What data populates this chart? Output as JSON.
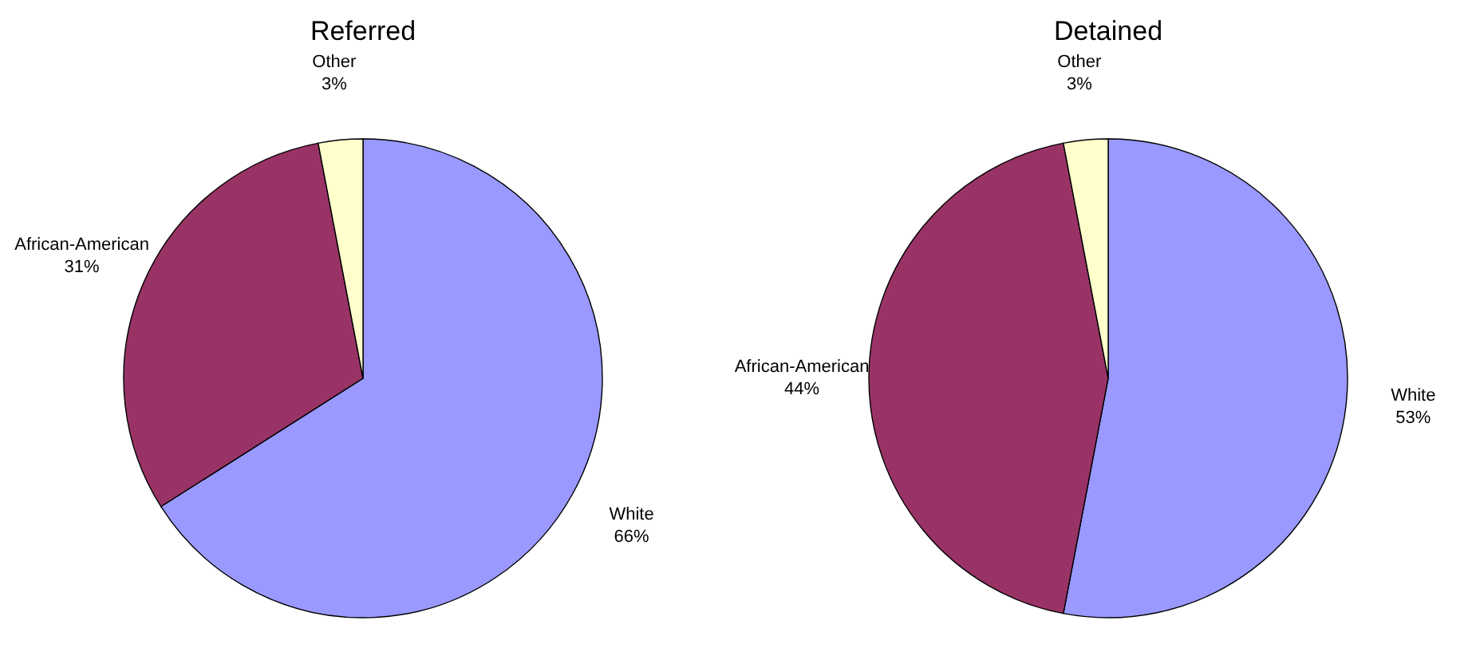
{
  "chart_data": [
    {
      "type": "pie",
      "title": "Referred",
      "categories": [
        "White",
        "African-American",
        "Other"
      ],
      "values": [
        66,
        31,
        3
      ],
      "value_labels": [
        "66%",
        "31%",
        "3%"
      ],
      "colors": [
        "#9999ff",
        "#993366",
        "#ffffcc"
      ]
    },
    {
      "type": "pie",
      "title": "Detained",
      "categories": [
        "White",
        "African-American",
        "Other"
      ],
      "values": [
        53,
        44,
        3
      ],
      "value_labels": [
        "53%",
        "44%",
        "3%"
      ],
      "colors": [
        "#9999ff",
        "#993366",
        "#ffffcc"
      ]
    }
  ]
}
